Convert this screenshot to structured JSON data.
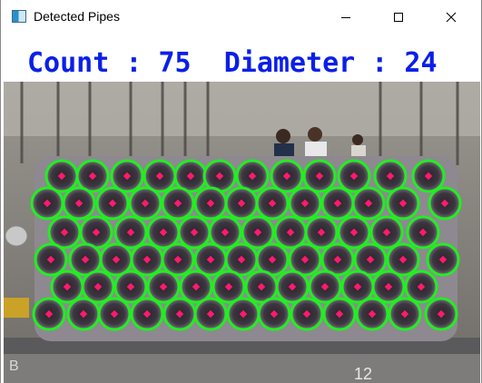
{
  "window": {
    "title": "Detected Pipes",
    "app_icon": "image-window-icon",
    "controls": [
      {
        "name": "minimize",
        "icon": "minimize-icon"
      },
      {
        "name": "maximize",
        "icon": "maximize-icon"
      },
      {
        "name": "close",
        "icon": "close-icon"
      }
    ]
  },
  "overlay": {
    "text": "Count : 75  Diameter : 24",
    "color": "#0a1fe8"
  },
  "detection": {
    "circle_color": "#22ee22",
    "center_color": "#ff1a6e"
  },
  "photo_labels": {
    "left_bottom": "B",
    "right_bottom": "12"
  }
}
